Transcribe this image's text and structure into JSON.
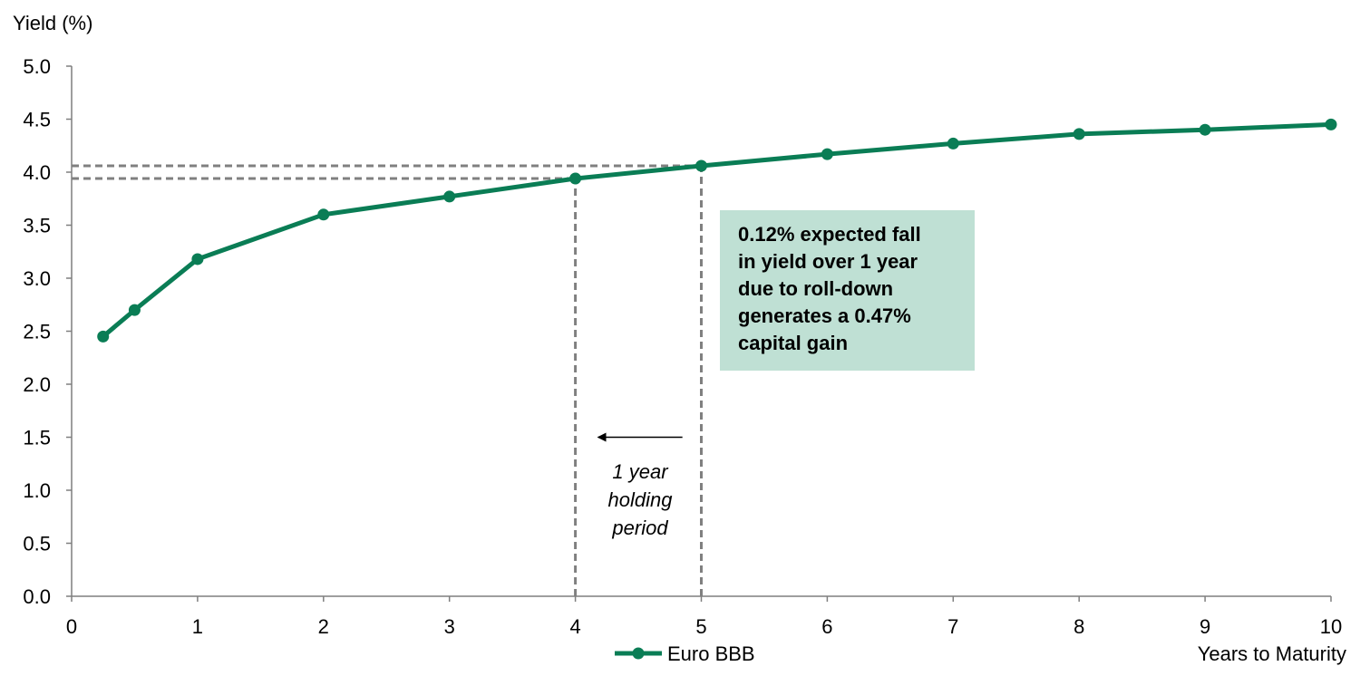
{
  "chart_data": {
    "type": "line",
    "title": "",
    "ylabel": "Yield (%)",
    "xlabel": "Years to Maturity",
    "xlim": [
      0,
      10
    ],
    "ylim": [
      0,
      5
    ],
    "xticks": [
      "0",
      "1",
      "2",
      "3",
      "4",
      "5",
      "6",
      "7",
      "8",
      "9",
      "10"
    ],
    "yticks": [
      "0.0",
      "0.5",
      "1.0",
      "1.5",
      "2.0",
      "2.5",
      "3.0",
      "3.5",
      "4.0",
      "4.5",
      "5.0"
    ],
    "grid": false,
    "legend_placement": "bottom",
    "series": [
      {
        "name": "Euro BBB",
        "color": "#0a7d55",
        "x": [
          0.25,
          0.5,
          1,
          2,
          3,
          4,
          5,
          6,
          7,
          8,
          9,
          10
        ],
        "y": [
          2.45,
          2.7,
          3.18,
          3.6,
          3.77,
          3.94,
          4.06,
          4.17,
          4.27,
          4.36,
          4.4,
          4.45
        ]
      }
    ],
    "reference_lines": [
      {
        "x": 4,
        "y": 3.94,
        "style": "dashed",
        "color": "#808080"
      },
      {
        "x": 5,
        "y": 4.06,
        "style": "dashed",
        "color": "#808080"
      }
    ],
    "annotations": {
      "box_text": "0.12% expected fall\nin yield over 1 year\ndue to roll-down\ngenerates a 0.47%\ncapital gain",
      "box_color": "#bfe0d4",
      "holding_text": "1 year\nholding\nperiod",
      "arrow_from_x": 4.85,
      "arrow_to_x": 4.18,
      "arrow_y": 1.5
    }
  }
}
